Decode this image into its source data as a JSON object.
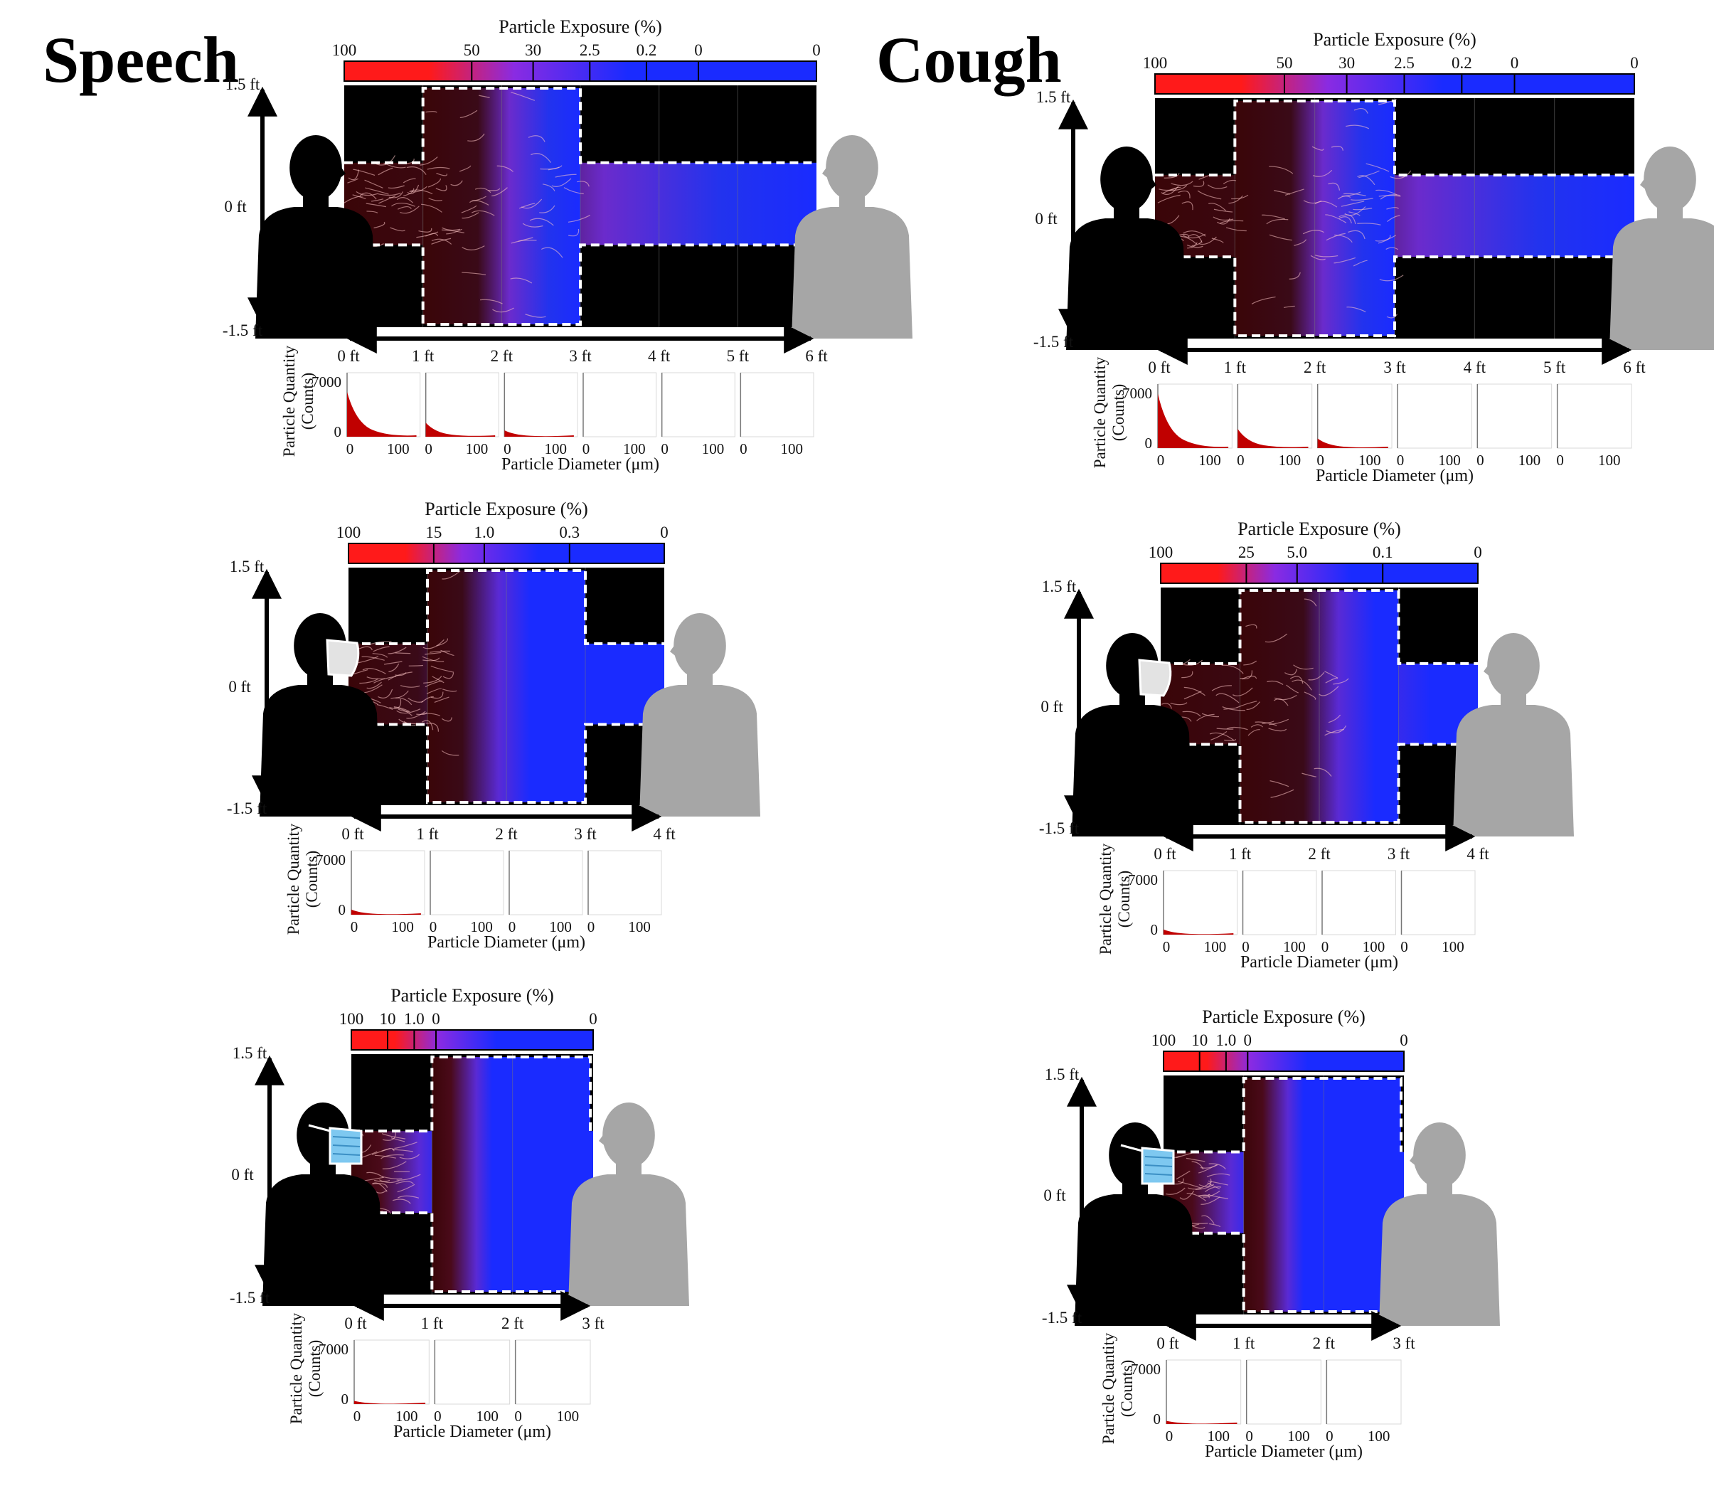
{
  "titles": {
    "speech": "Speech",
    "cough": "Cough"
  },
  "labels": {
    "exposure_title": "Particle Exposure (%)",
    "quantity_title_1": "Particle Quantity",
    "quantity_title_2": "(Counts)",
    "diameter_title": "Particle Diameter (μm)",
    "y_top": "1.5 ft",
    "y_mid": "0 ft",
    "y_bot": "-1.5 ft",
    "count_max": "7000",
    "count_min": "0",
    "diam_min": "0",
    "diam_max": "100"
  },
  "colors": {
    "high": "#ff1a1a",
    "mid": "#8a2be2",
    "low": "#1a2bff",
    "zone": "#000000",
    "emitter": "#000000",
    "receiver": "#a6a6a6",
    "histogram": "#c00000"
  },
  "panels": [
    {
      "column": "speech",
      "mask": "none",
      "distance_ft": 6,
      "scale_ticks": [
        "100",
        "50",
        "30",
        "2.5",
        "0.2",
        "0",
        "0"
      ],
      "x_ticks": [
        "0 ft",
        "1 ft",
        "2 ft",
        "3 ft",
        "4 ft",
        "5 ft",
        "6 ft"
      ],
      "histogram_peaks": [
        0.7,
        0.22,
        0.1,
        0,
        0,
        0
      ]
    },
    {
      "column": "cough",
      "mask": "none",
      "distance_ft": 6,
      "scale_ticks": [
        "100",
        "50",
        "30",
        "2.5",
        "0.2",
        "0",
        "0"
      ],
      "x_ticks": [
        "0 ft",
        "1 ft",
        "2 ft",
        "3 ft",
        "4 ft",
        "5 ft",
        "6 ft"
      ],
      "histogram_peaks": [
        0.85,
        0.3,
        0.15,
        0,
        0,
        0
      ]
    },
    {
      "column": "speech",
      "mask": "cloth",
      "distance_ft": 4,
      "scale_ticks": [
        "100",
        "15",
        "1.0",
        "0.3",
        "0"
      ],
      "x_ticks": [
        "0 ft",
        "1 ft",
        "2 ft",
        "3 ft",
        "4 ft"
      ],
      "histogram_peaks": [
        0.08,
        0,
        0,
        0
      ]
    },
    {
      "column": "cough",
      "mask": "cloth",
      "distance_ft": 4,
      "scale_ticks": [
        "100",
        "25",
        "5.0",
        "0.1",
        "0"
      ],
      "x_ticks": [
        "0 ft",
        "1 ft",
        "2 ft",
        "3 ft",
        "4 ft"
      ],
      "histogram_peaks": [
        0.08,
        0,
        0,
        0
      ]
    },
    {
      "column": "speech",
      "mask": "surgical",
      "distance_ft": 3,
      "scale_ticks": [
        "100",
        "10",
        "1.0",
        "0",
        "0"
      ],
      "x_ticks": [
        "0 ft",
        "1 ft",
        "2 ft",
        "3 ft"
      ],
      "histogram_peaks": [
        0.05,
        0,
        0
      ]
    },
    {
      "column": "cough",
      "mask": "surgical",
      "distance_ft": 3,
      "scale_ticks": [
        "100",
        "10",
        "1.0",
        "0",
        "0"
      ],
      "x_ticks": [
        "0 ft",
        "1 ft",
        "2 ft",
        "3 ft"
      ],
      "histogram_peaks": [
        0.05,
        0,
        0
      ]
    }
  ]
}
